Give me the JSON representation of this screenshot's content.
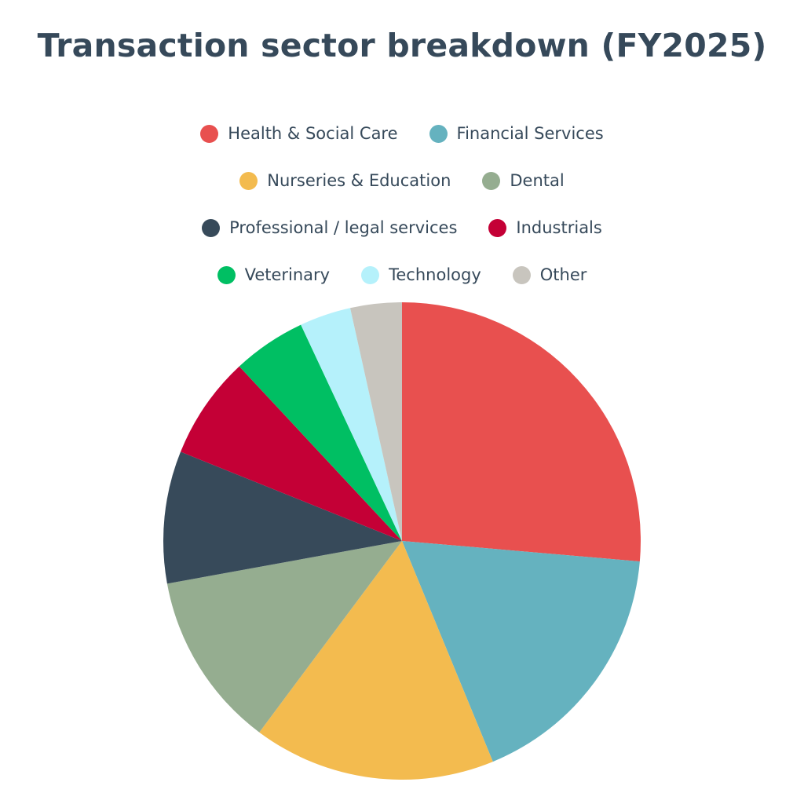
{
  "chart_data": {
    "type": "pie",
    "title": "Transaction sector breakdown (FY2025)",
    "legend_position": "top",
    "slices": [
      {
        "name": "Health & Social Care",
        "value": 26.5,
        "color": "#e8504f"
      },
      {
        "name": "Financial Services",
        "value": 17.5,
        "color": "#65b2bf"
      },
      {
        "name": "Nurseries & Education",
        "value": 16.5,
        "color": "#f3bb4f"
      },
      {
        "name": "Dental",
        "value": 12.0,
        "color": "#95ad90"
      },
      {
        "name": "Professional / legal services",
        "value": 9.0,
        "color": "#374a5a"
      },
      {
        "name": "Industrials",
        "value": 7.0,
        "color": "#c40036"
      },
      {
        "name": "Veterinary",
        "value": 5.0,
        "color": "#00bf63"
      },
      {
        "name": "Technology",
        "value": 3.5,
        "color": "#b5f1fb"
      },
      {
        "name": "Other",
        "value": 3.5,
        "color": "#c8c5be"
      }
    ]
  }
}
